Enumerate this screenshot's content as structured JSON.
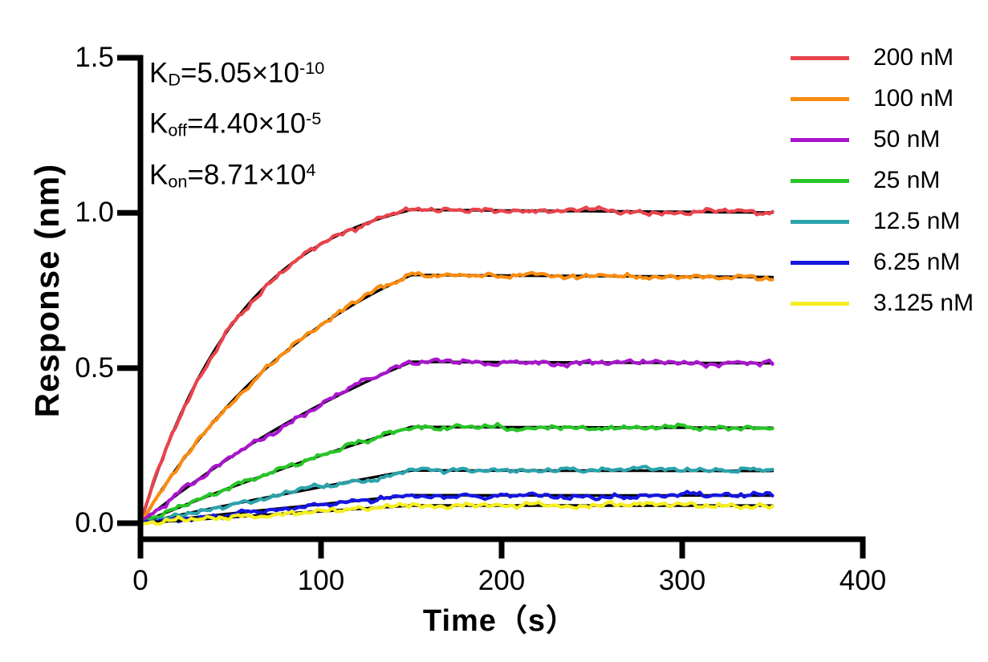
{
  "figure": {
    "background": "#FFFFFF"
  },
  "chart_data": {
    "type": "line",
    "title": "",
    "xlabel": "Time（s）",
    "ylabel": "Response (nm)",
    "xlim": [
      0,
      400
    ],
    "ylim": [
      0,
      1.5
    ],
    "x_ticks": [
      0,
      100,
      200,
      300,
      400
    ],
    "x_tick_labels": [
      "0",
      "100",
      "200",
      "300",
      "400"
    ],
    "y_ticks": [
      0,
      0.5,
      1.0,
      1.5
    ],
    "y_tick_labels": [
      "0.0",
      "0.5",
      "1.0",
      "1.5"
    ],
    "grid": false,
    "legend_position": "right",
    "association_end_s": 150,
    "trace_end_s": 350,
    "fit": {
      "KD_M": 5.05e-10,
      "koff_per_s": 4.4e-05,
      "kon_per_M_s": 87100,
      "line_color": "#000000"
    },
    "annotations": [
      {
        "base": "K",
        "sub": "D",
        "rest": "=5.05×10",
        "sup": "-10"
      },
      {
        "base": "K",
        "sub": "off",
        "rest": "=4.40×10",
        "sup": "-5"
      },
      {
        "base": "K",
        "sub": "on",
        "rest": "=8.71×10",
        "sup": "4"
      }
    ],
    "series": [
      {
        "label": "200 nM",
        "concentration_nM": 200,
        "color": "#E8444C",
        "plateau_response_nm": 1.01
      },
      {
        "label": "100 nM",
        "concentration_nM": 100,
        "color": "#F98C12",
        "plateau_response_nm": 0.8
      },
      {
        "label": "50 nM",
        "concentration_nM": 50,
        "color": "#A816CC",
        "plateau_response_nm": 0.52
      },
      {
        "label": "25 nM",
        "concentration_nM": 25,
        "color": "#28C428",
        "plateau_response_nm": 0.31
      },
      {
        "label": "12.5 nM",
        "concentration_nM": 12.5,
        "color": "#2BA3AC",
        "plateau_response_nm": 0.17
      },
      {
        "label": "6.25 nM",
        "concentration_nM": 6.25,
        "color": "#1616E0",
        "plateau_response_nm": 0.09
      },
      {
        "label": "3.125 nM",
        "concentration_nM": 3.125,
        "color": "#F5EE22",
        "plateau_response_nm": 0.057
      }
    ]
  }
}
